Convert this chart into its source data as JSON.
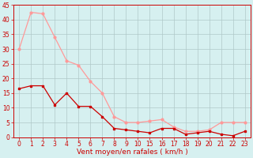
{
  "x_labels": [
    "0",
    "1",
    "2",
    "3",
    "4",
    "5",
    "6",
    "7",
    "8",
    "9",
    "10",
    "15",
    "16",
    "17",
    "18",
    "19",
    "20",
    "21",
    "22",
    "23"
  ],
  "wind_mean": [
    16.5,
    17.5,
    17.5,
    11,
    15,
    10.5,
    10.5,
    7,
    3,
    2.5,
    2,
    1.5,
    3,
    3,
    1,
    1.5,
    2,
    1,
    0.5,
    2
  ],
  "wind_gust": [
    30,
    42.5,
    42,
    34,
    26,
    24.5,
    19,
    15,
    7,
    5,
    5,
    5.5,
    6,
    3.5,
    2,
    2,
    2.5,
    5,
    5,
    5
  ],
  "color_mean": "#cc0000",
  "color_gust": "#ff9999",
  "bg_color": "#d6f0f0",
  "grid_color": "#b0c8c8",
  "xlabel": "Vent moyen/en rafales ( km/h )",
  "ylim": [
    0,
    45
  ],
  "yticks": [
    0,
    5,
    10,
    15,
    20,
    25,
    30,
    35,
    40,
    45
  ],
  "tick_fontsize": 5.5,
  "axis_fontsize": 6.5
}
